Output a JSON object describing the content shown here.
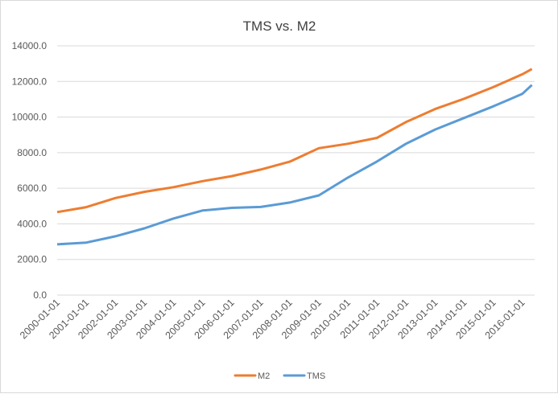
{
  "chart_data": {
    "type": "line",
    "title": "TMS vs. M2",
    "xlabel": "",
    "ylabel": "",
    "ylim": [
      0,
      14000
    ],
    "yticks": [
      "0.0",
      "2000.0",
      "4000.0",
      "6000.0",
      "8000.0",
      "10000.0",
      "12000.0",
      "14000.0"
    ],
    "xtick_labels": [
      "2000-01-01",
      "2001-01-01",
      "2002-01-01",
      "2003-01-01",
      "2004-01-01",
      "2005-01-01",
      "2006-01-01",
      "2007-01-01",
      "2008-01-01",
      "2009-01-01",
      "2010-01-01",
      "2011-01-01",
      "2012-01-01",
      "2013-01-01",
      "2014-01-01",
      "2015-01-01",
      "2016-01-01"
    ],
    "grid": true,
    "legend_position": "bottom",
    "x": [
      "2000-01-01",
      "2001-01-01",
      "2002-01-01",
      "2003-01-01",
      "2004-01-01",
      "2005-01-01",
      "2006-01-01",
      "2007-01-01",
      "2008-01-01",
      "2009-01-01",
      "2010-01-01",
      "2011-01-01",
      "2012-01-01",
      "2013-01-01",
      "2014-01-01",
      "2015-01-01",
      "2016-01-01",
      "2016-05-01"
    ],
    "series": [
      {
        "name": "M2",
        "color": "#ED7D31",
        "values": [
          4660,
          4940,
          5450,
          5800,
          6060,
          6400,
          6680,
          7050,
          7490,
          8250,
          8500,
          8830,
          9720,
          10450,
          11030,
          11680,
          12400,
          12700
        ]
      },
      {
        "name": "TMS",
        "color": "#5B9BD5",
        "values": [
          2850,
          2950,
          3300,
          3750,
          4300,
          4750,
          4900,
          4950,
          5200,
          5600,
          6600,
          7500,
          8500,
          9300,
          9950,
          10600,
          11300,
          11800
        ]
      }
    ]
  }
}
